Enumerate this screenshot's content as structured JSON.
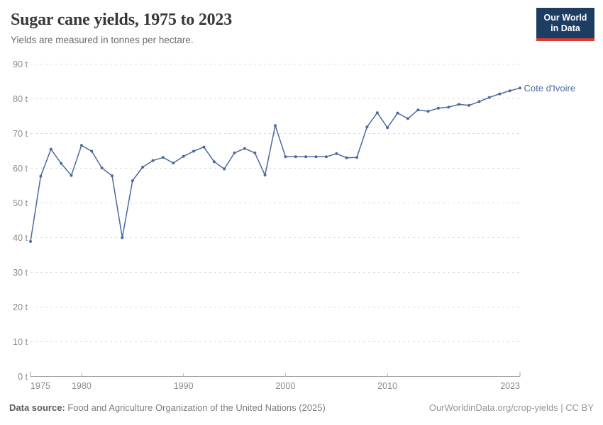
{
  "header": {
    "title": "Sugar cane yields, 1975 to 2023",
    "subtitle": "Yields are measured in tonnes per hectare.",
    "logo": {
      "line1": "Our World",
      "line2": "in Data"
    }
  },
  "chart_data": {
    "type": "line",
    "title": "Sugar cane yields, 1975 to 2023",
    "ylabel": "tonnes per hectare",
    "xlabel": "",
    "unit": "t",
    "xlim": [
      1975,
      2023
    ],
    "ylim": [
      0,
      90
    ],
    "x_ticks": [
      1975,
      1980,
      1990,
      2000,
      2010,
      2023
    ],
    "y_ticks": [
      0,
      10,
      20,
      30,
      40,
      50,
      60,
      70,
      80,
      90
    ],
    "y_tick_suffix": " t",
    "grid": "dashed-horizontal",
    "legend_position": "end-of-line-label",
    "series": [
      {
        "name": "Cote d'Ivoire",
        "color": "#4c6a9c",
        "x": [
          1975,
          1976,
          1977,
          1978,
          1979,
          1980,
          1981,
          1982,
          1983,
          1984,
          1985,
          1986,
          1987,
          1988,
          1989,
          1990,
          1991,
          1992,
          1993,
          1994,
          1995,
          1996,
          1997,
          1998,
          1999,
          2000,
          2001,
          2002,
          2003,
          2004,
          2005,
          2006,
          2007,
          2008,
          2009,
          2010,
          2011,
          2012,
          2013,
          2014,
          2015,
          2016,
          2017,
          2018,
          2019,
          2020,
          2021,
          2022,
          2023
        ],
        "values": [
          38.9,
          57.7,
          65.5,
          61.4,
          57.9,
          66.6,
          64.9,
          60.1,
          57.8,
          40.0,
          56.4,
          60.3,
          62.2,
          63.1,
          61.5,
          63.4,
          64.9,
          66.1,
          61.9,
          59.8,
          64.4,
          65.7,
          64.4,
          58.0,
          72.3,
          63.3,
          63.3,
          63.3,
          63.3,
          63.3,
          64.2,
          63.0,
          63.1,
          71.9,
          76.0,
          71.7,
          75.9,
          74.3,
          76.8,
          76.4,
          77.3,
          77.6,
          78.4,
          78.1,
          79.2,
          80.4,
          81.4,
          82.3,
          83.1
        ]
      }
    ]
  },
  "footer": {
    "source_label": "Data source:",
    "source_text": " Food and Agriculture Organization of the United Nations (2025)",
    "credit": "OurWorldinData.org/crop-yields | CC BY"
  },
  "colors": {
    "line": "#4c6a9c",
    "grid": "#dadada",
    "axis": "#a5a5a5",
    "tick": "#b5b5b5",
    "tick_text": "#8a8a8a",
    "logo_bg": "#1d3d63",
    "logo_stripe": "#d93a34"
  }
}
